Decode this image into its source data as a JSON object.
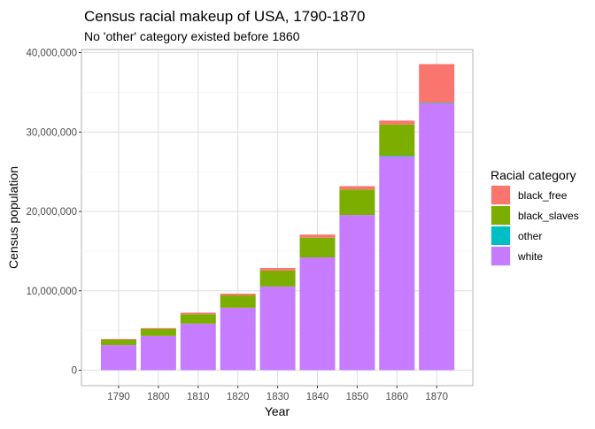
{
  "chart_data": {
    "type": "bar",
    "stacked": true,
    "title": "Census racial makeup of USA, 1790-1870",
    "subtitle": "No 'other' category existed before 1860",
    "xlabel": "Year",
    "ylabel": "Census population",
    "ylim": [
      0,
      40000000
    ],
    "yticks": [
      0,
      10000000,
      20000000,
      30000000,
      40000000
    ],
    "ytick_labels": [
      "0",
      "10,000,000",
      "20,000,000",
      "30,000,000",
      "40,000,000"
    ],
    "categories": [
      "1790",
      "1800",
      "1810",
      "1820",
      "1830",
      "1840",
      "1850",
      "1860",
      "1870"
    ],
    "grid": true,
    "legend_title": "Racial category",
    "legend_position": "right",
    "series": [
      {
        "name": "white",
        "color": "#C77CFF",
        "values": [
          3170000,
          4310000,
          5860000,
          7870000,
          10540000,
          14200000,
          19550000,
          26920000,
          33590000
        ]
      },
      {
        "name": "other",
        "color": "#00BFC4",
        "values": [
          0,
          0,
          0,
          0,
          0,
          0,
          0,
          80000,
          90000
        ]
      },
      {
        "name": "black_slaves",
        "color": "#7CAE00",
        "values": [
          700000,
          890000,
          1190000,
          1540000,
          2010000,
          2490000,
          3200000,
          3950000,
          0
        ]
      },
      {
        "name": "black_free",
        "color": "#F8766D",
        "values": [
          60000,
          110000,
          190000,
          230000,
          320000,
          390000,
          430000,
          490000,
          4880000
        ]
      }
    ],
    "legend_order": [
      "black_free",
      "black_slaves",
      "other",
      "white"
    ]
  }
}
